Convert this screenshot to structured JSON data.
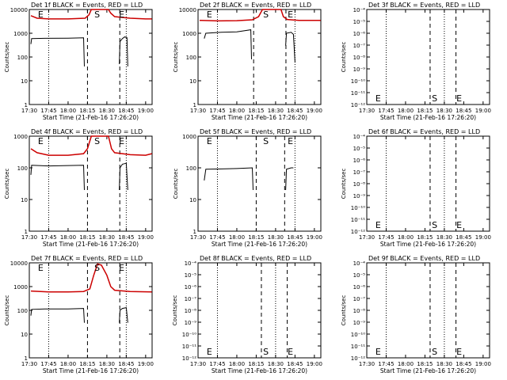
{
  "figure": {
    "xlabel_prefix": "Start Time",
    "start_time": "(21-Feb-16 17:26:20)",
    "x_ticks": [
      "17:30",
      "17:45",
      "18:00",
      "18:15",
      "18:30",
      "18:45",
      "19:00"
    ],
    "ylabel": "Counts/sec",
    "colors": {
      "events": "#000000",
      "lld": "#cc0000"
    }
  },
  "chart_data": [
    {
      "type": "line",
      "title": "Det 1f BLACK = Events, RED = LLD",
      "yscale": "log",
      "ylim": [
        1,
        10000
      ],
      "y_ticks": [
        "1",
        "10",
        "100",
        "1000",
        "10000"
      ],
      "markers": [
        {
          "label": "E",
          "time": 0.07
        },
        {
          "label": "S",
          "time": 0.53
        },
        {
          "label": "E",
          "time": 0.73
        }
      ],
      "dotted_times": [
        "17:45",
        "18:45"
      ],
      "dashed_times": [
        "18:15",
        "18:40"
      ],
      "series": [
        {
          "color": "lld",
          "points": [
            [
              17.52,
              5500
            ],
            [
              17.6,
              4300
            ],
            [
              17.75,
              4000
            ],
            [
              18.0,
              4000
            ],
            [
              18.22,
              4300
            ],
            [
              18.27,
              6000
            ],
            [
              18.3,
              10000
            ],
            [
              18.52,
              10000
            ],
            [
              18.55,
              7000
            ],
            [
              18.6,
              5000
            ],
            [
              18.8,
              4300
            ],
            [
              19.0,
              4000
            ],
            [
              19.08,
              4000
            ]
          ]
        },
        {
          "color": "events",
          "points": [
            [
              17.52,
              350
            ],
            [
              17.53,
              600
            ],
            [
              17.7,
              610
            ],
            [
              18.0,
              620
            ],
            [
              18.2,
              640
            ],
            [
              18.21,
              40
            ]
          ]
        },
        {
          "color": "events",
          "points": [
            [
              18.66,
              50
            ],
            [
              18.67,
              450
            ],
            [
              18.7,
              600
            ],
            [
              18.73,
              700
            ],
            [
              18.76,
              650
            ],
            [
              18.77,
              40
            ]
          ]
        }
      ]
    },
    {
      "type": "line",
      "title": "Det 2f BLACK = Events, RED = LLD",
      "yscale": "log",
      "ylim": [
        1,
        10000
      ],
      "y_ticks": [
        "1",
        "10",
        "100",
        "1000",
        "10000"
      ],
      "markers": [
        {
          "label": "E",
          "time": 0.07
        },
        {
          "label": "S",
          "time": 0.53
        },
        {
          "label": "E",
          "time": 0.73
        }
      ],
      "dotted_times": [
        "17:45",
        "18:45"
      ],
      "dashed_times": [
        "18:13",
        "18:38"
      ],
      "series": [
        {
          "color": "lld",
          "points": [
            [
              17.52,
              3500
            ],
            [
              17.75,
              3300
            ],
            [
              18.0,
              3400
            ],
            [
              18.2,
              3700
            ],
            [
              18.28,
              5000
            ],
            [
              18.33,
              10000
            ],
            [
              18.57,
              10000
            ],
            [
              18.6,
              5000
            ],
            [
              18.65,
              3800
            ],
            [
              18.8,
              3500
            ],
            [
              19.08,
              3500
            ]
          ]
        },
        {
          "color": "events",
          "points": [
            [
              17.58,
              600
            ],
            [
              17.6,
              1000
            ],
            [
              17.8,
              1100
            ],
            [
              18.0,
              1150
            ],
            [
              18.18,
              1400
            ],
            [
              18.19,
              80
            ]
          ]
        },
        {
          "color": "events",
          "points": [
            [
              18.63,
              300
            ],
            [
              18.64,
              1000
            ],
            [
              18.7,
              1100
            ],
            [
              18.73,
              900
            ],
            [
              18.75,
              60
            ]
          ]
        }
      ]
    },
    {
      "type": "line",
      "title": "Det 3f BLACK = Events, RED = LLD",
      "yscale": "log",
      "ylim": [
        1e-12,
        0.0001
      ],
      "y_ticks": [
        "10⁻¹²",
        "10⁻¹¹",
        "10⁻¹⁰",
        "10⁻⁹",
        "10⁻⁸",
        "10⁻⁷",
        "10⁻⁶",
        "10⁻⁵",
        "10⁻⁴"
      ],
      "markers": [
        {
          "label": "E",
          "time": 0.07
        },
        {
          "label": "S",
          "time": 0.53
        },
        {
          "label": "E",
          "time": 0.73
        }
      ],
      "dotted_times": [
        "17:45",
        "18:30"
      ],
      "dashed_times": [
        "18:19",
        "18:39"
      ],
      "series": []
    },
    {
      "type": "line",
      "title": "Det 4f BLACK = Events, RED = LLD",
      "yscale": "log",
      "ylim": [
        1,
        1000
      ],
      "y_ticks": [
        "1",
        "10",
        "100",
        "1000"
      ],
      "markers": [
        {
          "label": "E",
          "time": 0.07
        },
        {
          "label": "S",
          "time": 0.53
        },
        {
          "label": "E",
          "time": 0.73
        }
      ],
      "dotted_times": [
        "17:45",
        "18:45"
      ],
      "dashed_times": [
        "18:15",
        "18:40"
      ],
      "series": [
        {
          "color": "lld",
          "points": [
            [
              17.52,
              400
            ],
            [
              17.6,
              300
            ],
            [
              17.75,
              250
            ],
            [
              18.0,
              250
            ],
            [
              18.2,
              280
            ],
            [
              18.25,
              400
            ],
            [
              18.3,
              1000
            ],
            [
              18.52,
              1000
            ],
            [
              18.56,
              400
            ],
            [
              18.6,
              300
            ],
            [
              18.8,
              260
            ],
            [
              19.0,
              250
            ],
            [
              19.08,
              280
            ]
          ]
        },
        {
          "color": "events",
          "points": [
            [
              17.52,
              60
            ],
            [
              17.53,
              120
            ],
            [
              17.75,
              115
            ],
            [
              18.0,
              118
            ],
            [
              18.2,
              120
            ],
            [
              18.21,
              20
            ]
          ]
        },
        {
          "color": "events",
          "points": [
            [
              18.66,
              20
            ],
            [
              18.67,
              100
            ],
            [
              18.7,
              130
            ],
            [
              18.75,
              140
            ],
            [
              18.77,
              20
            ]
          ]
        }
      ]
    },
    {
      "type": "line",
      "title": "Det 5f BLACK = Events, RED = LLD",
      "yscale": "log",
      "ylim": [
        1,
        1000
      ],
      "y_ticks": [
        "1",
        "10",
        "100",
        "1000"
      ],
      "markers": [
        {
          "label": "E",
          "time": 0.07
        },
        {
          "label": "S",
          "time": 0.53
        },
        {
          "label": "E",
          "time": 0.73
        }
      ],
      "dotted_times": [
        "17:45",
        "18:45"
      ],
      "dashed_times": [
        "18:15",
        "18:37"
      ],
      "series": [
        {
          "color": "events",
          "points": [
            [
              17.58,
              40
            ],
            [
              17.6,
              90
            ],
            [
              17.8,
              92
            ],
            [
              18.0,
              95
            ],
            [
              18.2,
              100
            ],
            [
              18.21,
              20
            ]
          ]
        },
        {
          "color": "events",
          "points": [
            [
              18.63,
              20
            ],
            [
              18.64,
              90
            ],
            [
              18.7,
              100
            ],
            [
              18.73,
              100
            ]
          ]
        }
      ]
    },
    {
      "type": "line",
      "title": "Det 6f BLACK = Events, RED = LLD",
      "yscale": "log",
      "ylim": [
        1e-12,
        0.0001
      ],
      "y_ticks": [
        "10⁻¹²",
        "10⁻¹¹",
        "10⁻¹⁰",
        "10⁻⁹",
        "10⁻⁸",
        "10⁻⁷",
        "10⁻⁶",
        "10⁻⁵",
        "10⁻⁴"
      ],
      "markers": [
        {
          "label": "E",
          "time": 0.07
        },
        {
          "label": "S",
          "time": 0.53
        },
        {
          "label": "E",
          "time": 0.73
        }
      ],
      "dotted_times": [
        "17:45",
        "18:30"
      ],
      "dashed_times": [
        "18:19",
        "18:39"
      ],
      "series": []
    },
    {
      "type": "line",
      "title": "Det 7f BLACK = Events, RED = LLD",
      "yscale": "log",
      "ylim": [
        1,
        10000
      ],
      "y_ticks": [
        "1",
        "10",
        "100",
        "1000",
        "10000"
      ],
      "markers": [
        {
          "label": "E",
          "time": 0.07
        },
        {
          "label": "S",
          "time": 0.53
        },
        {
          "label": "E",
          "time": 0.73
        }
      ],
      "dotted_times": [
        "17:45",
        "18:45"
      ],
      "dashed_times": [
        "18:15",
        "18:40"
      ],
      "series": [
        {
          "color": "lld",
          "points": [
            [
              17.52,
              650
            ],
            [
              17.75,
              600
            ],
            [
              18.0,
              600
            ],
            [
              18.2,
              620
            ],
            [
              18.28,
              800
            ],
            [
              18.33,
              3000
            ],
            [
              18.38,
              9000
            ],
            [
              18.43,
              8000
            ],
            [
              18.5,
              3000
            ],
            [
              18.55,
              1000
            ],
            [
              18.6,
              700
            ],
            [
              18.8,
              620
            ],
            [
              19.08,
              600
            ]
          ]
        },
        {
          "color": "events",
          "points": [
            [
              17.52,
              60
            ],
            [
              17.53,
              110
            ],
            [
              17.7,
              115
            ],
            [
              18.0,
              115
            ],
            [
              18.2,
              120
            ],
            [
              18.21,
              30
            ]
          ]
        },
        {
          "color": "events",
          "points": [
            [
              18.66,
              30
            ],
            [
              18.67,
              100
            ],
            [
              18.7,
              120
            ],
            [
              18.75,
              130
            ],
            [
              18.77,
              30
            ]
          ]
        }
      ]
    },
    {
      "type": "line",
      "title": "Det 8f BLACK = Events, RED = LLD",
      "yscale": "log",
      "ylim": [
        1e-12,
        0.0001
      ],
      "y_ticks": [
        "10⁻¹²",
        "10⁻¹¹",
        "10⁻¹⁰",
        "10⁻⁹",
        "10⁻⁸",
        "10⁻⁷",
        "10⁻⁶",
        "10⁻⁵",
        "10⁻⁴"
      ],
      "markers": [
        {
          "label": "E",
          "time": 0.07
        },
        {
          "label": "S",
          "time": 0.53
        },
        {
          "label": "E",
          "time": 0.73
        }
      ],
      "dotted_times": [
        "17:45",
        "18:30"
      ],
      "dashed_times": [
        "18:19",
        "18:39"
      ],
      "series": []
    },
    {
      "type": "line",
      "title": "Det 9f BLACK = Events, RED = LLD",
      "yscale": "log",
      "ylim": [
        1e-12,
        0.0001
      ],
      "y_ticks": [
        "10⁻¹²",
        "10⁻¹¹",
        "10⁻¹⁰",
        "10⁻⁹",
        "10⁻⁸",
        "10⁻⁷",
        "10⁻⁶",
        "10⁻⁵",
        "10⁻⁴"
      ],
      "markers": [
        {
          "label": "E",
          "time": 0.07
        },
        {
          "label": "S",
          "time": 0.53
        },
        {
          "label": "E",
          "time": 0.73
        }
      ],
      "dotted_times": [
        "17:45",
        "18:30"
      ],
      "dashed_times": [
        "18:19",
        "18:39"
      ],
      "series": []
    }
  ]
}
